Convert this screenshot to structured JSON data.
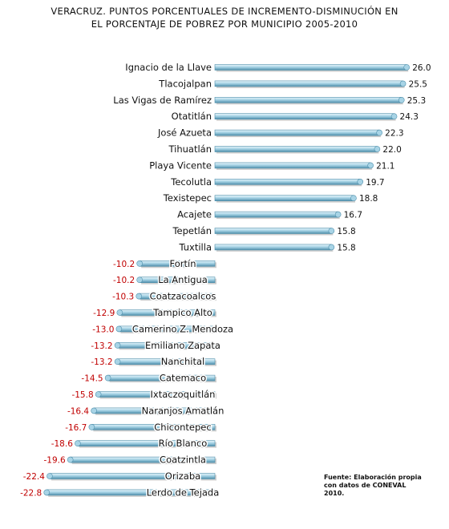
{
  "chart_data": {
    "type": "bar",
    "orientation": "horizontal",
    "title": [
      "VERACRUZ. PUNTOS PORCENTUALES DE INCREMENTO-DISMINUCIÓN  EN",
      "EL PORCENTAJE DE POBREZ  POR MUNICIPIO  2005-2010"
    ],
    "categories": [
      "Ignacio de la Llave",
      "Tlacojalpan",
      "Las Vigas de Ramírez",
      "Otatitlán",
      "José Azueta",
      "Tihuatlán",
      "Playa Vicente",
      "Tecolutla",
      "Texistepec",
      "Acajete",
      "Tepetlán",
      "Tuxtilla",
      "Fortín",
      "La Antigua",
      "Coatzacoalcos",
      "Tampico Alto",
      "Camerino Z. Mendoza",
      "Emiliano Zapata",
      "Nanchital",
      "Catemaco",
      "Ixtaczoquitlán",
      "Naranjos Amatlán",
      "Chicontepec",
      "Río Blanco",
      "Coatzintla",
      "Orizaba",
      "Lerdo de Tejada"
    ],
    "values": [
      26.0,
      25.5,
      25.3,
      24.3,
      22.3,
      22.0,
      21.1,
      19.7,
      18.8,
      16.7,
      15.8,
      15.8,
      -10.2,
      -10.2,
      -10.3,
      -12.9,
      -13.0,
      -13.2,
      -13.2,
      -14.5,
      -15.8,
      -16.4,
      -16.7,
      -18.6,
      -19.6,
      -22.4,
      -22.8
    ],
    "value_labels": [
      "26.0",
      "25.5",
      "25.3",
      "24.3",
      "22.3",
      "22.0",
      "21.1",
      "19.7",
      "18.8",
      "16.7",
      "15.8",
      "15.8",
      "-10.2",
      "-10.2",
      "-10.3",
      "-12.9",
      "-13.0",
      "-13.2",
      "-13.2",
      "-14.5",
      "-15.8",
      "-16.4",
      "-16.7",
      "-18.6",
      "-19.6",
      "-22.4",
      "-22.8"
    ],
    "colors": {
      "bar_fill": "#a8d4e6",
      "bar_highlight": "#e8f5fb",
      "bar_edge": "#4f8fab",
      "negative_label": "#c00000",
      "positive_label": "#111111"
    }
  },
  "source_note": [
    "Fuente: Elaboración propia",
    "con datos de CONEVAL",
    "2010."
  ]
}
